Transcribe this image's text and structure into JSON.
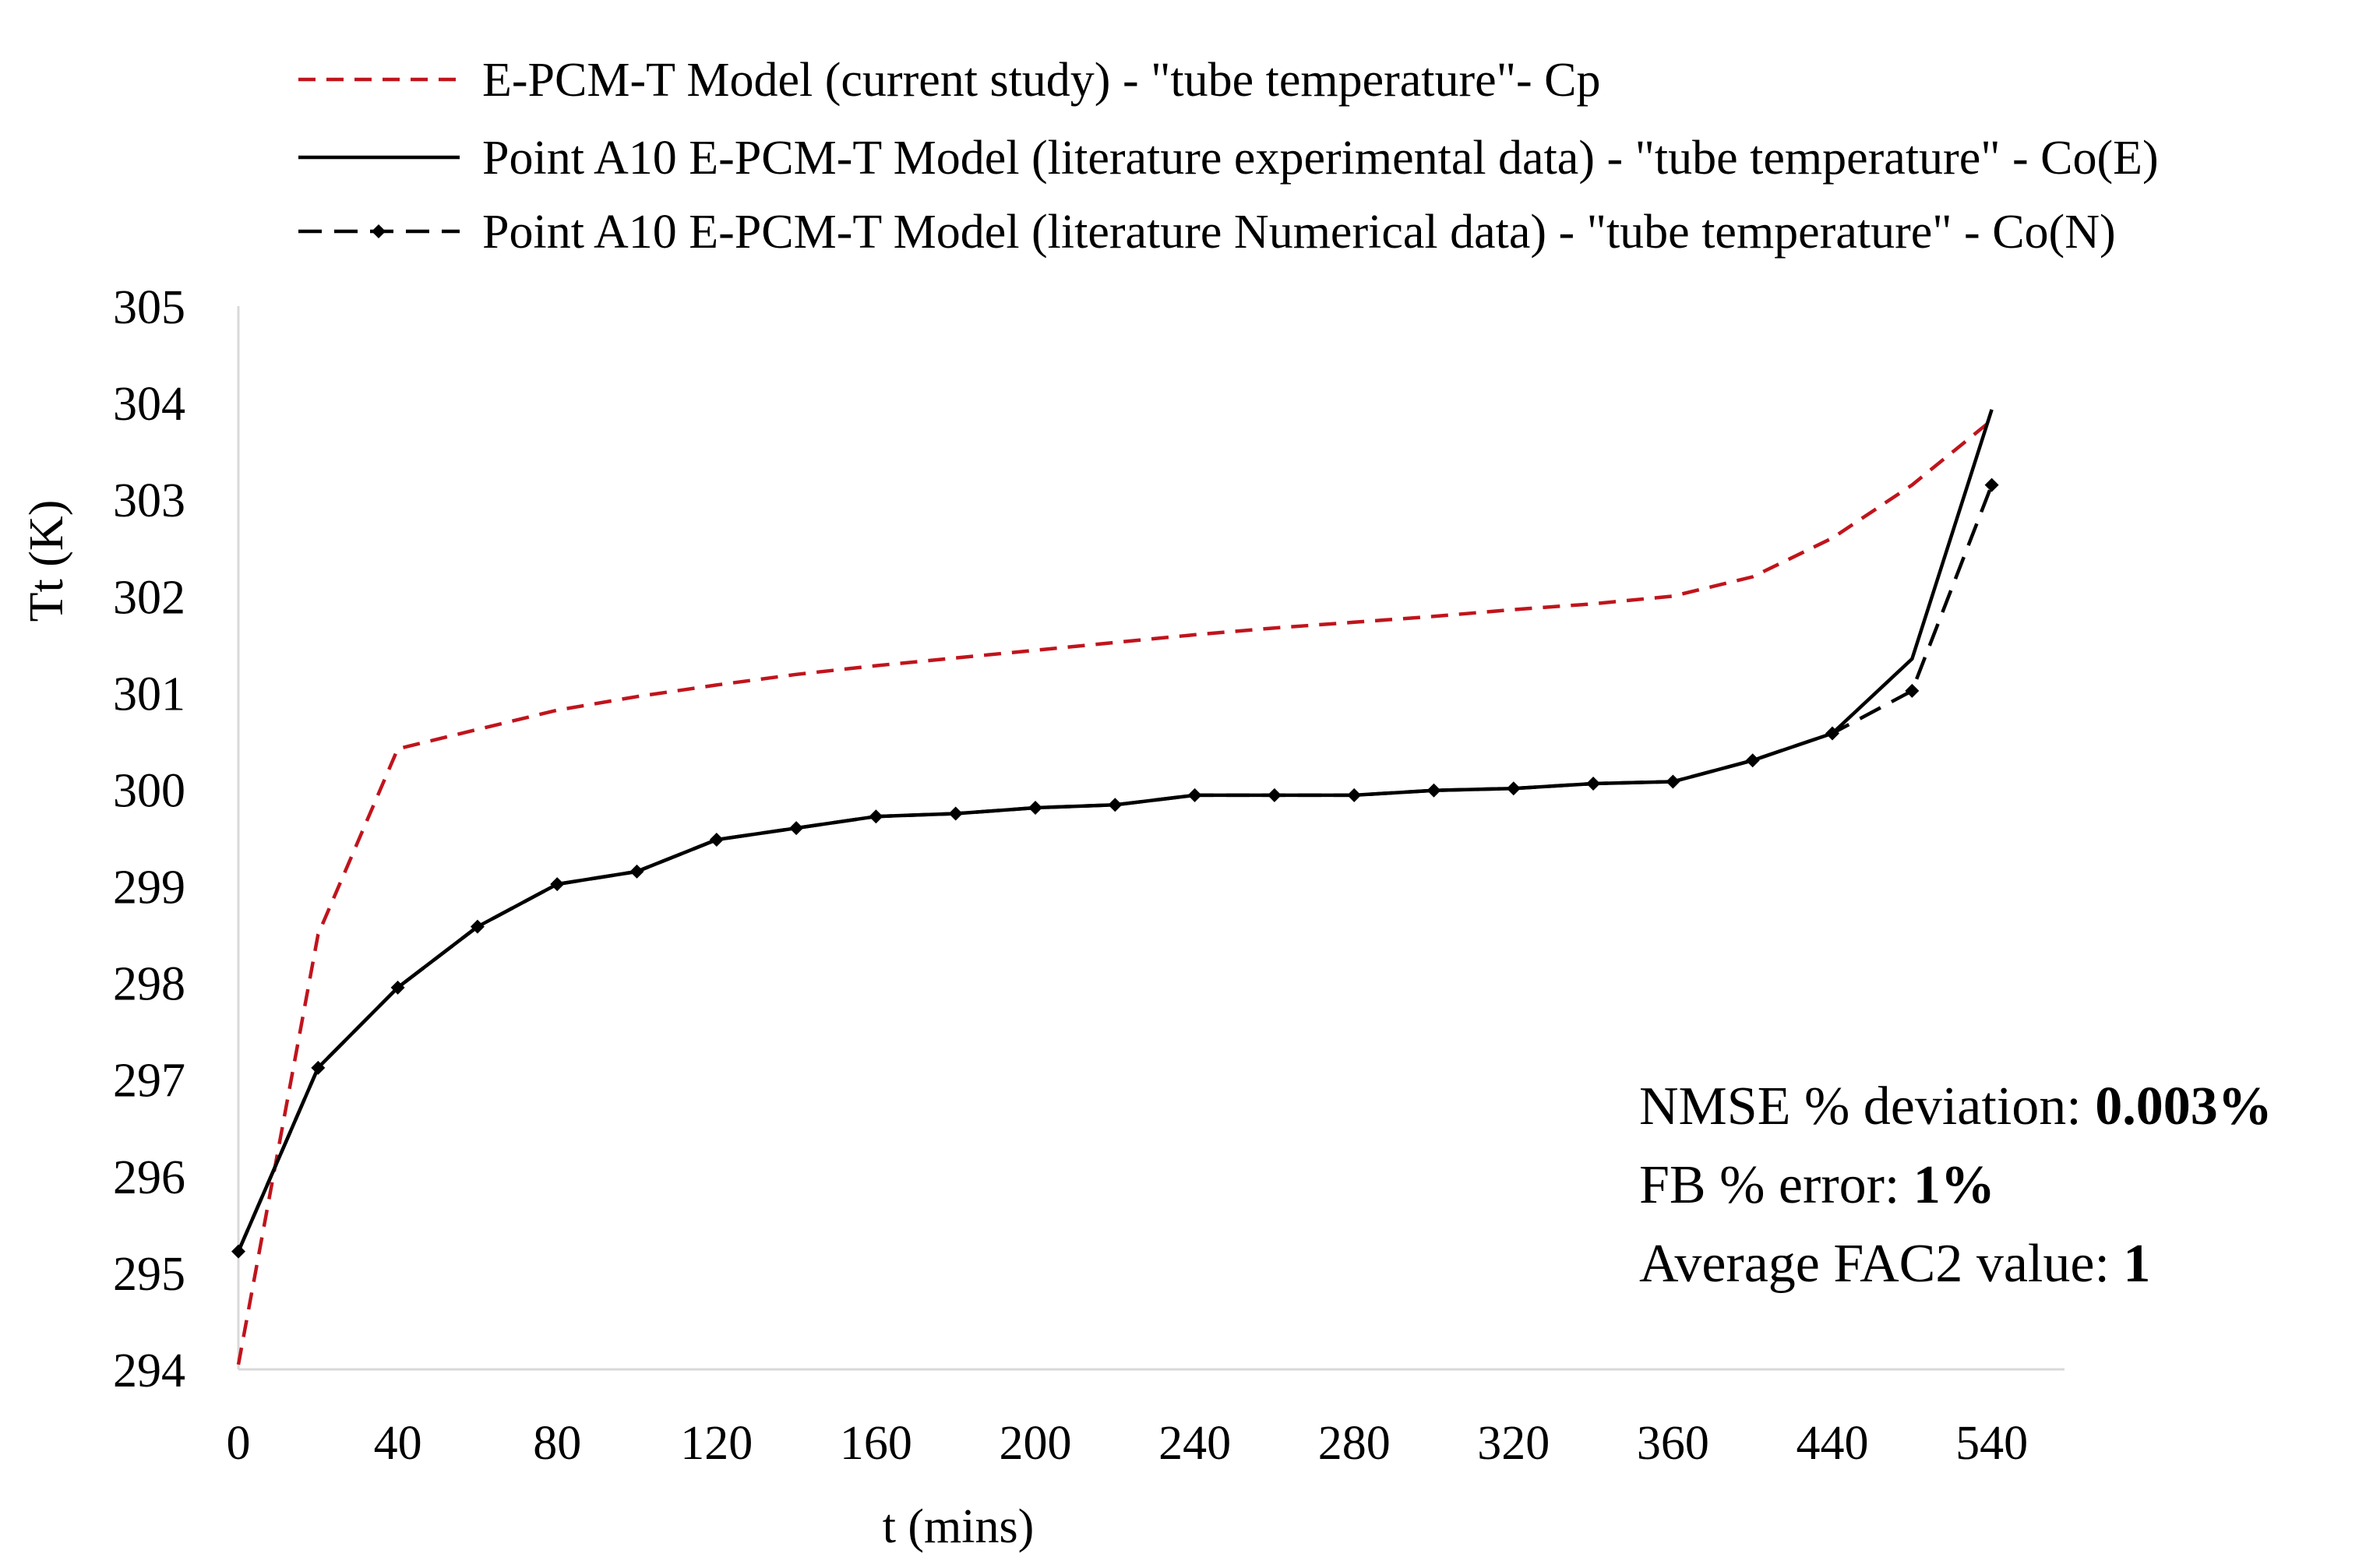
{
  "chart_data": {
    "type": "line",
    "ylabel": "Tt  (K)",
    "xlabel": "t (mins)",
    "ylim": [
      294,
      305
    ],
    "yticks": [
      "294",
      "295",
      "296",
      "297",
      "298",
      "299",
      "300",
      "301",
      "302",
      "303",
      "304",
      "305"
    ],
    "xticks": [
      "0",
      "40",
      "80",
      "120",
      "160",
      "200",
      "240",
      "280",
      "320",
      "360",
      "440",
      "540"
    ],
    "x_positions": [
      0,
      1,
      2,
      3,
      4,
      5,
      6,
      7,
      8,
      9,
      10,
      11,
      12,
      13,
      14,
      15,
      16,
      17,
      18,
      19,
      20,
      21,
      22
    ],
    "grid": false,
    "legend_position": "top",
    "series": [
      {
        "name": "E-PCM-T Model (current study)  - \"tube temperature\"-  Cp",
        "color": "#c0141c",
        "style": "dashed",
        "markers": false,
        "values": [
          294.05,
          298.5,
          300.42,
          300.62,
          300.82,
          300.96,
          301.08,
          301.19,
          301.28,
          301.36,
          301.44,
          301.52,
          301.6,
          301.67,
          301.73,
          301.79,
          301.86,
          301.92,
          302.0,
          302.2,
          302.6,
          303.15,
          303.82
        ]
      },
      {
        "name": "Point A10 E-PCM-T Model (literature experimental data) - \"tube temperature\" - Co(E)",
        "color": "#000000",
        "style": "solid",
        "markers": false,
        "values": [
          295.22,
          297.12,
          297.95,
          298.58,
          299.02,
          299.15,
          299.48,
          299.6,
          299.72,
          299.75,
          299.81,
          299.84,
          299.94,
          299.94,
          299.94,
          299.99,
          300.01,
          300.06,
          300.08,
          300.3,
          300.58,
          301.35,
          303.93
        ]
      },
      {
        "name": "Point A10 E-PCM-T Model (literature Numerical data) - \"tube temperature\" - Co(N)",
        "color": "#000000",
        "style": "dashed",
        "markers": true,
        "values": [
          295.22,
          297.12,
          297.95,
          298.58,
          299.02,
          299.15,
          299.48,
          299.6,
          299.72,
          299.75,
          299.81,
          299.84,
          299.94,
          299.94,
          299.94,
          299.99,
          300.01,
          300.06,
          300.08,
          300.3,
          300.58,
          301.02,
          303.15
        ]
      }
    ],
    "annotation": {
      "nmse_label": "NMSE % deviation: ",
      "nmse_value": "0.003%",
      "fb_label": "FB % error: ",
      "fb_value": "1%",
      "fac2_label": "Average FAC2 value: ",
      "fac2_value": "1"
    }
  }
}
